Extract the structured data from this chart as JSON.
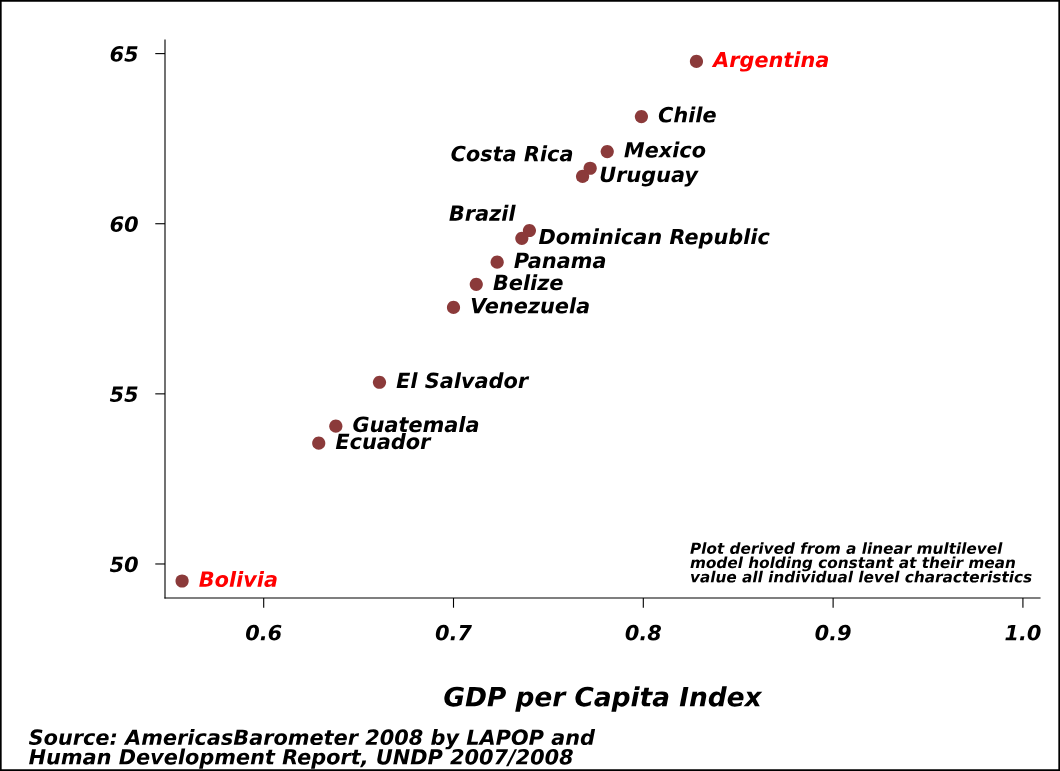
{
  "chart_data": {
    "type": "scatter",
    "xlabel": "GDP per Capita Index",
    "x": [
      0.828,
      0.799,
      0.781,
      0.772,
      0.768,
      0.74,
      0.736,
      0.723,
      0.712,
      0.7,
      0.661,
      0.638,
      0.629,
      0.557
    ],
    "series": [
      {
        "color": "#8b3a3a",
        "values": [
          64.77,
          63.15,
          62.12,
          61.63,
          61.39,
          59.8,
          59.57,
          58.87,
          58.22,
          57.54,
          55.34,
          54.05,
          53.55,
          49.5
        ]
      }
    ],
    "marker": "circle",
    "xlim": [
      0.548,
      1.009
    ],
    "ylim": [
      49.0,
      65.4
    ],
    "xticks": [
      0.6,
      0.7,
      0.8,
      0.9,
      {
        "value": 1.0,
        "label": "1.0"
      }
    ],
    "yticks": [
      50,
      55,
      60,
      65
    ],
    "grid": false,
    "legend": false,
    "annotations": [
      {
        "text": "Argentina",
        "x": 0.828,
        "y": 64.77
      },
      {
        "text": "Chile",
        "x": 0.799,
        "y": 63.15
      },
      {
        "text": "Mexico",
        "x": 0.781,
        "y": 62.12
      },
      {
        "text": "Costa Rica",
        "x": 0.772,
        "y": 61.63
      },
      {
        "text": "Uruguay",
        "x": 0.768,
        "y": 61.39
      },
      {
        "text": "Brazil",
        "x": 0.74,
        "y": 59.8
      },
      {
        "text": "Dominican Republic",
        "x": 0.736,
        "y": 59.57
      },
      {
        "text": "Panama",
        "x": 0.723,
        "y": 58.87
      },
      {
        "text": "Belize",
        "x": 0.712,
        "y": 58.22
      },
      {
        "text": "Venezuela",
        "x": 0.7,
        "y": 57.54
      },
      {
        "text": "El Salvador",
        "x": 0.661,
        "y": 55.34
      },
      {
        "text": "Guatemala",
        "x": 0.638,
        "y": 54.05
      },
      {
        "text": "Ecuador",
        "x": 0.629,
        "y": 53.55
      },
      {
        "text": "Bolivia",
        "x": 0.557,
        "y": 49.5
      },
      "Plot derived from a linear multilevel\nmodel holding constant at their mean\nvalue all individual level characteristics",
      "Source: AmericasBarometer 2008 by LAPOP and\nHuman Development Report, UNDP 2007/2008"
    ]
  }
}
